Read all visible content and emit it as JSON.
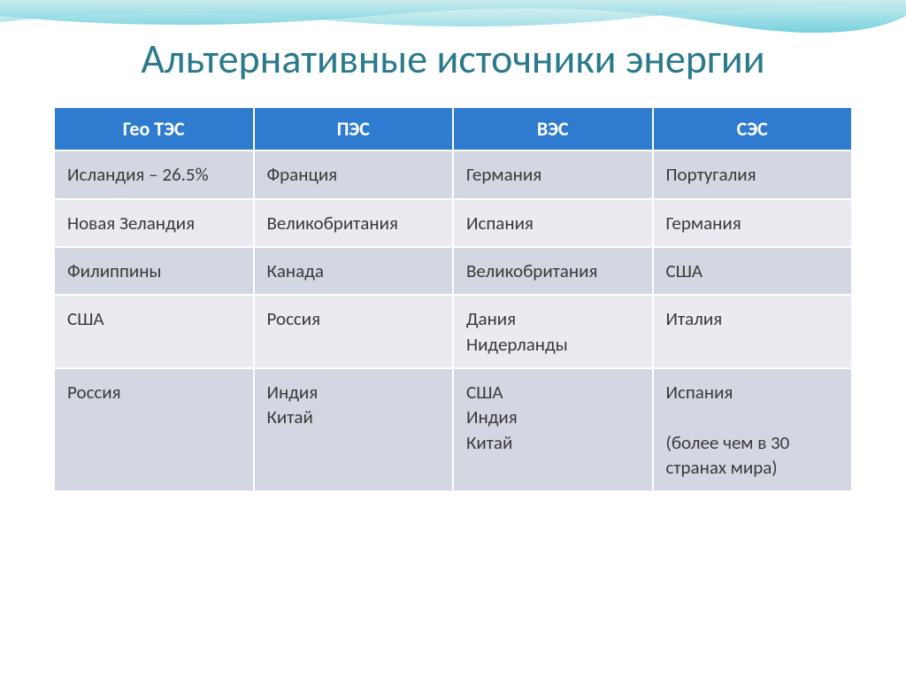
{
  "title": "Альтернативные источники энергии",
  "title_color": "#2a7a8c",
  "table": {
    "header_bg": "#2f7bd0",
    "header_text_color": "#ffffff",
    "row_odd_bg": "#d3d7e2",
    "row_even_bg": "#e9ebf1",
    "cell_text_color": "#3a3a3a",
    "columns": [
      "Гео ТЭС",
      "ПЭС",
      "ВЭС",
      "СЭС"
    ],
    "rows": [
      [
        "Исландия – 26.5%",
        "Франция",
        "Германия",
        "Португалия"
      ],
      [
        "Новая Зеландия",
        "Великобритания",
        "Испания",
        "Германия"
      ],
      [
        "Филиппины",
        "Канада",
        "Великобритания",
        "США"
      ],
      [
        "США",
        "Россия",
        "Дания\nНидерланды",
        "Италия"
      ],
      [
        "Россия",
        "Индия\nКитай",
        "США\nИндия\nКитай",
        "Испания\n\n(более чем в 30 странах мира)"
      ]
    ]
  },
  "waves": {
    "wave1_light": "#c5ebef",
    "wave1_dark": "#5fc9d6",
    "wave2_light": "#d8f0f3",
    "wave2_dark": "#7fd4de"
  }
}
